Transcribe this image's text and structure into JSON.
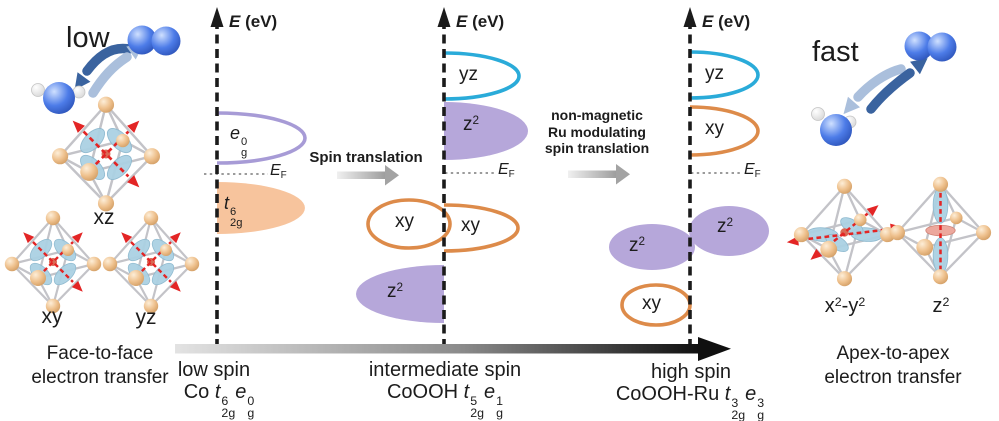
{
  "colors": {
    "text_black": "#1c1c1c",
    "axis_black": "#1b1b1b",
    "fermi_gray": "#9b9b9b",
    "purple_outline": "#a79bd6",
    "purple_fill": "#b6a7da",
    "orange_outline": "#dd8b4a",
    "orange_fill": "#f7c49d",
    "cyan_outline": "#2aabd9",
    "red_arrow": "#e32525",
    "lobe_blue": "#abd1e3",
    "arrow_dark_blue": "#3a639f",
    "arrow_light_blue": "#aabfdc"
  },
  "panels": {
    "left": {
      "speed": "low",
      "oct1": "xz",
      "oct2": "xy",
      "oct3": "yz",
      "caption1": "Face-to-face",
      "caption2": "electron transfer"
    },
    "right": {
      "speed": "fast",
      "caption1": "Apex-to-apex",
      "caption2": "electron transfer",
      "orb1": {
        "b1": "x",
        "s1": "2",
        "sep": "-",
        "b2": "y",
        "s2": "2"
      },
      "orb2": {
        "base": "z",
        "sup": "2"
      }
    }
  },
  "axes": {
    "energy_E": "E",
    "energy_unit": " (eV)",
    "fermi_E": "E",
    "fermi_sub": "F"
  },
  "diagram1": {
    "eg": {
      "base": "e",
      "sup": "0",
      "sub": "g"
    },
    "t2g": {
      "base": "t",
      "sup": "6",
      "sub": "2g"
    },
    "footer": "low spin",
    "formula": {
      "prefix": "Co ",
      "t": "t",
      "tsup": "6",
      "tsub": "2g",
      "e": "e",
      "esup": "0",
      "esub": "g"
    }
  },
  "diagram2": {
    "yz": "yz",
    "z2_upper": {
      "base": "z",
      "sup": "2"
    },
    "xy_left": "xy",
    "xy_right": "xy",
    "z2_lower": {
      "base": "z",
      "sup": "2"
    },
    "footer": "intermediate spin",
    "formula": {
      "prefix": "CoOOH ",
      "t": "t",
      "tsup": "5",
      "tsub": "2g",
      "e": "e",
      "esup": "1",
      "esub": "g"
    }
  },
  "diagram3": {
    "yz": "yz",
    "xy_upper": "xy",
    "z2_left": {
      "base": "z",
      "sup": "2"
    },
    "z2_right": {
      "base": "z",
      "sup": "2"
    },
    "xy_lower": "xy",
    "footer": "high spin",
    "formula": {
      "prefix": "CoOOH-Ru ",
      "t": "t",
      "tsup": "3",
      "tsub": "2g",
      "e": "e",
      "esup": "3",
      "esub": "g"
    }
  },
  "transitions": {
    "first": {
      "line1": "Spin translation"
    },
    "second": {
      "line1": "non-magnetic",
      "line2": "Ru modulating",
      "line3": "spin translation"
    }
  }
}
